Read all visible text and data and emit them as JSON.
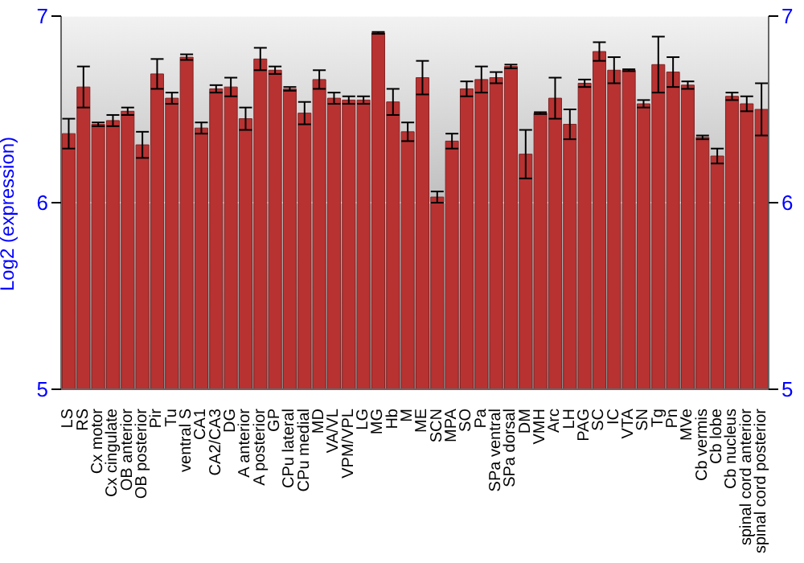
{
  "chart_data": {
    "type": "bar",
    "ylabel": "Log2 (expression)",
    "categories": [
      "LS",
      "RS",
      "Cx motor",
      "Cx cingulate",
      "OB anterior",
      "OB posterior",
      "Pir",
      "Tu",
      "ventral S",
      "CA1",
      "CA2/CA3",
      "DG",
      "A anterior",
      "A posterior",
      "GP",
      "CPu lateral",
      "CPu medial",
      "MD",
      "VA/VL",
      "VPM/VPL",
      "LG",
      "MG",
      "Hb",
      "M",
      "ME",
      "SCN",
      "MPA",
      "SO",
      "Pa",
      "SPa ventral",
      "SPa dorsal",
      "DM",
      "VMH",
      "Arc",
      "LH",
      "PAG",
      "SC",
      "IC",
      "VTA",
      "SN",
      "Tg",
      "Pn",
      "MVe",
      "Cb vermis",
      "Cb lobe",
      "Cb nucleus",
      "spinal cord anterior",
      "spinal cord posterior"
    ],
    "values": [
      6.37,
      6.62,
      6.42,
      6.44,
      6.49,
      6.31,
      6.69,
      6.56,
      6.78,
      6.4,
      6.61,
      6.62,
      6.45,
      6.77,
      6.71,
      6.61,
      6.48,
      6.66,
      6.56,
      6.55,
      6.55,
      6.91,
      6.54,
      6.38,
      6.67,
      6.03,
      6.33,
      6.61,
      6.66,
      6.67,
      6.73,
      6.26,
      6.48,
      6.56,
      6.42,
      6.64,
      6.81,
      6.71,
      6.71,
      6.53,
      6.74,
      6.7,
      6.63,
      6.35,
      6.25,
      6.57,
      6.53,
      6.5
    ],
    "errors": [
      0.08,
      0.11,
      0.01,
      0.03,
      0.02,
      0.07,
      0.08,
      0.03,
      0.015,
      0.03,
      0.02,
      0.05,
      0.06,
      0.06,
      0.02,
      0.01,
      0.06,
      0.05,
      0.03,
      0.02,
      0.02,
      0.005,
      0.07,
      0.05,
      0.09,
      0.03,
      0.04,
      0.04,
      0.07,
      0.03,
      0.01,
      0.13,
      0.005,
      0.11,
      0.08,
      0.02,
      0.05,
      0.07,
      0.005,
      0.02,
      0.15,
      0.08,
      0.02,
      0.01,
      0.04,
      0.02,
      0.04,
      0.14
    ],
    "color": "#b83232",
    "ylim": [
      5,
      7
    ],
    "yticks": [
      5,
      6,
      7
    ],
    "y2lim": [
      5,
      7
    ],
    "y2ticks": [
      5,
      6,
      7
    ],
    "grid": "y"
  }
}
